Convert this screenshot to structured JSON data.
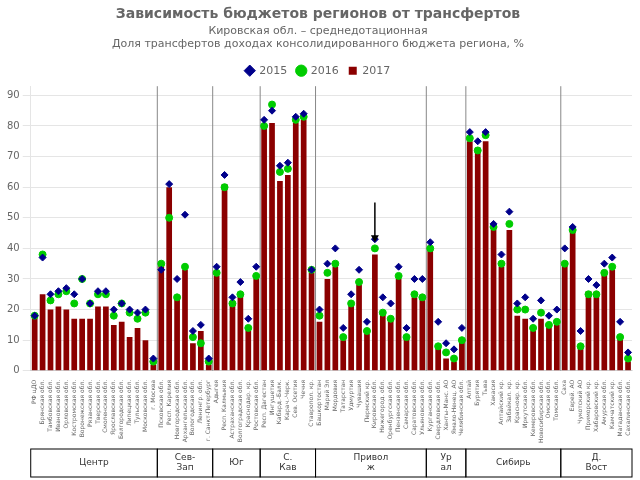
{
  "chart_data": {
    "type": "bar",
    "title": "Зависимость бюджетов регионов от трансфертов",
    "subtitle": "Кировская обл. – среднедотационная",
    "ylabel": "Доля трансфертов доходах консолидированного бюджета региона, %",
    "categories": [
      "РФ цДО",
      "Брянская обл.",
      "Тамбовская обл.",
      "Ивановская обл.",
      "Орловская обл.",
      "Костромская обл.",
      "Воронежская обл.",
      "Рязанская обл.",
      "Тверская обл.",
      "Смоленская обл.",
      "Ярославская обл.",
      "Белгородская обл.",
      "Липецкая обл.",
      "Тульская обл.",
      "Московская обл.",
      "г. Москва",
      "Псковская обл.",
      "Респ. Карелия",
      "Новгородская обл.",
      "Архангельская обл.",
      "Вологодская обл.",
      "Ленингр. обл.",
      "г. Санкт-Петербург",
      "Адыгея",
      "Респ. Калмыкия",
      "Астраханская обл.",
      "Волгоградская обл.",
      "Краснодар. кр.",
      "Ростовская обл.",
      "Респ. Дагестан",
      "Ингушетия",
      "Кабард.-Балк.",
      "Карач.-Черк.",
      "Сев. Осетия",
      "Чечня",
      "Ставропол. кр.",
      "Башкортостан",
      "Марий Эл",
      "Мордовия",
      "Татарстан",
      "Удмуртия",
      "Чувашия",
      "Пермский кр.",
      "Кировская обл.",
      "Нижегород. обл.",
      "Оренбургская обл.",
      "Пензенская обл.",
      "Самарская обл.",
      "Саратовская обл.",
      "Ульяновская обл.",
      "Курганская обл.",
      "Свердловская обл.",
      "Ханты-Манс. АО",
      "Ямало-Ненец. АО",
      "Челябинская обл.",
      "Алтай",
      "Бурятия",
      "Тыва",
      "Хакасия",
      "Алтайский кр.",
      "Забайкал. кр.",
      "Краснояр. кр.",
      "Иркутская обл.",
      "Кемеровская обл.",
      "Новосибирская обл.",
      "Омская обл.",
      "Томская обл.",
      "Саха",
      "Еврей. АО",
      "Чукотский АО",
      "Приморский кр.",
      "Хабаровский кр.",
      "Амурская обл.",
      "Камчатский кр.",
      "Магаданская обл.",
      "Сахалинская обл."
    ],
    "series": [
      {
        "name": "2017",
        "type": "bar",
        "color": "#8B0000",
        "values": [
          18,
          25,
          20,
          21,
          20,
          17,
          17,
          17,
          21,
          21,
          15,
          16,
          11,
          14,
          10,
          2,
          35,
          60,
          24,
          33,
          9,
          13,
          2,
          31,
          61,
          22,
          25,
          13,
          30,
          80,
          81,
          62,
          64,
          81,
          82,
          32,
          16,
          30,
          34,
          10,
          22,
          28,
          12,
          38,
          19,
          17,
          30,
          11,
          24,
          24,
          40,
          8,
          4,
          3,
          10,
          75,
          73,
          75,
          46,
          34,
          46,
          18,
          17,
          13,
          17,
          15,
          15,
          35,
          46,
          8,
          26,
          25,
          32,
          33,
          11,
          3
        ]
      },
      {
        "name": "2015",
        "type": "scatter",
        "marker": "diamond",
        "color": "#00008B",
        "values": [
          18,
          37,
          25,
          26,
          27,
          25,
          30,
          22,
          26,
          26,
          20,
          22,
          20,
          19,
          20,
          4,
          33,
          61,
          30,
          51,
          13,
          15,
          4,
          34,
          64,
          24,
          29,
          17,
          34,
          82,
          85,
          67,
          68,
          83,
          84,
          33,
          20,
          35,
          40,
          14,
          25,
          33,
          16,
          43,
          24,
          22,
          34,
          14,
          30,
          30,
          42,
          16,
          9,
          7,
          14,
          78,
          75,
          78,
          48,
          38,
          52,
          22,
          24,
          17,
          23,
          18,
          20,
          40,
          47,
          13,
          30,
          28,
          35,
          37,
          16,
          6
        ]
      },
      {
        "name": "2016",
        "type": "scatter",
        "marker": "circle",
        "color": "#00CC00",
        "values": [
          18,
          38,
          23,
          25,
          26,
          22,
          30,
          22,
          25,
          25,
          18,
          22,
          19,
          17,
          19,
          3,
          35,
          50,
          24,
          34,
          11,
          9,
          3,
          32,
          60,
          22,
          25,
          14,
          31,
          80,
          87,
          65,
          66,
          82,
          83,
          33,
          18,
          32,
          35,
          11,
          22,
          29,
          13,
          40,
          19,
          17,
          31,
          11,
          25,
          24,
          40,
          8,
          6,
          4,
          10,
          76,
          72,
          77,
          47,
          35,
          48,
          20,
          20,
          14,
          19,
          15,
          16,
          35,
          46,
          8,
          25,
          25,
          32,
          34,
          11,
          4
        ]
      }
    ],
    "groups": [
      {
        "name": "Центр",
        "start": 0,
        "end": 16
      },
      {
        "name": "Сев-\nЗап",
        "start": 16,
        "end": 23
      },
      {
        "name": "Юг",
        "start": 23,
        "end": 29
      },
      {
        "name": "С.\nКав",
        "start": 29,
        "end": 36
      },
      {
        "name": "Привол\nж",
        "start": 36,
        "end": 50
      },
      {
        "name": "Ур\nал",
        "start": 50,
        "end": 55
      },
      {
        "name": "Сибирь",
        "start": 55,
        "end": 67
      },
      {
        "name": "Д.\nВост",
        "start": 67,
        "end": 76
      }
    ],
    "annotations": [
      {
        "type": "arrow",
        "x": "Кировская обл.",
        "y_start": 55,
        "y_end": 42
      }
    ],
    "ylim": [
      0,
      93
    ],
    "yticks": [
      0,
      10,
      20,
      30,
      40,
      50,
      60,
      70,
      80,
      90
    ],
    "grid": true,
    "legend": "top"
  }
}
